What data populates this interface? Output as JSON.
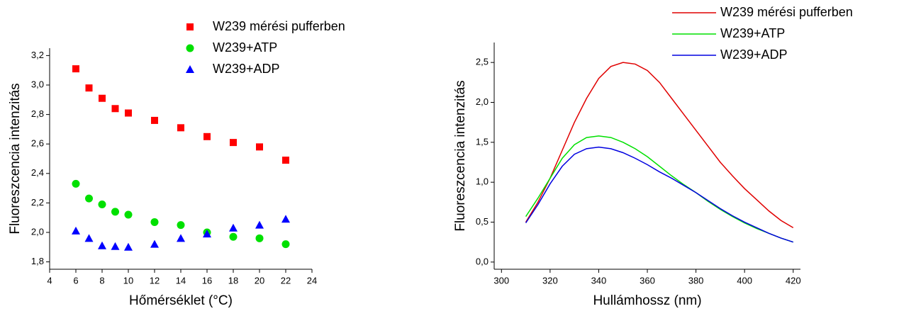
{
  "chart_data": [
    {
      "type": "scatter",
      "x_label": "Hőmérséklet (°C)",
      "y_label": "Fluoreszcencia intenzitás",
      "x": [
        6,
        7,
        8,
        9,
        10,
        12,
        14,
        16,
        18,
        20,
        22
      ],
      "series": [
        {
          "name": "W239 mérési pufferben",
          "color": "#ff0000",
          "marker": "square",
          "values": [
            3.11,
            2.98,
            2.91,
            2.84,
            2.81,
            2.76,
            2.71,
            2.65,
            2.61,
            2.58,
            2.49
          ]
        },
        {
          "name": "W239+ATP",
          "color": "#00e000",
          "marker": "circle",
          "values": [
            2.33,
            2.23,
            2.19,
            2.14,
            2.12,
            2.07,
            2.05,
            2.0,
            1.97,
            1.96,
            1.92
          ]
        },
        {
          "name": "W239+ADP",
          "color": "#0000ff",
          "marker": "triangle",
          "values": [
            2.01,
            1.96,
            1.91,
            1.905,
            1.9,
            1.92,
            1.96,
            1.99,
            2.03,
            2.05,
            2.09
          ]
        }
      ],
      "xlim": [
        4,
        24
      ],
      "xticks": [
        4,
        6,
        8,
        10,
        12,
        14,
        16,
        18,
        20,
        22,
        24
      ],
      "ylim": [
        1.75,
        3.25
      ],
      "yticks": [
        {
          "value": 1.8,
          "label": "1,8"
        },
        {
          "value": 2.0,
          "label": "2,0"
        },
        {
          "value": 2.2,
          "label": "2,2"
        },
        {
          "value": 2.4,
          "label": "2,4"
        },
        {
          "value": 2.6,
          "label": "2,6"
        },
        {
          "value": 2.8,
          "label": "2,8"
        },
        {
          "value": 3.0,
          "label": "3,0"
        },
        {
          "value": 3.2,
          "label": "3,2"
        }
      ]
    },
    {
      "type": "line",
      "x_label": "Hullámhossz (nm)",
      "y_label": "Fluoreszcencia intenzitás",
      "x": [
        310,
        315,
        320,
        325,
        330,
        335,
        340,
        345,
        350,
        355,
        360,
        365,
        370,
        375,
        380,
        385,
        390,
        395,
        400,
        405,
        410,
        415,
        420
      ],
      "series": [
        {
          "name": "W239 mérési pufferben",
          "color": "#e00000",
          "values": [
            0.5,
            0.75,
            1.05,
            1.4,
            1.75,
            2.05,
            2.3,
            2.45,
            2.5,
            2.48,
            2.4,
            2.25,
            2.05,
            1.85,
            1.65,
            1.45,
            1.25,
            1.08,
            0.92,
            0.78,
            0.64,
            0.52,
            0.43
          ]
        },
        {
          "name": "W239+ATP",
          "color": "#00e000",
          "values": [
            0.57,
            0.8,
            1.05,
            1.3,
            1.47,
            1.56,
            1.58,
            1.56,
            1.5,
            1.42,
            1.32,
            1.2,
            1.08,
            0.97,
            0.87,
            0.76,
            0.66,
            0.57,
            0.49,
            0.42,
            0.36,
            0.3,
            0.25
          ]
        },
        {
          "name": "W239+ADP",
          "color": "#0000e0",
          "values": [
            0.49,
            0.72,
            0.98,
            1.2,
            1.35,
            1.42,
            1.44,
            1.42,
            1.37,
            1.3,
            1.22,
            1.13,
            1.05,
            0.96,
            0.87,
            0.77,
            0.67,
            0.58,
            0.5,
            0.43,
            0.36,
            0.3,
            0.25
          ]
        }
      ],
      "xlim": [
        297,
        423
      ],
      "xticks": [
        300,
        320,
        340,
        360,
        380,
        400,
        420
      ],
      "ylim": [
        -0.09,
        2.75
      ],
      "yticks": [
        {
          "value": 0.0,
          "label": "0,0"
        },
        {
          "value": 0.5,
          "label": "0,5"
        },
        {
          "value": 1.0,
          "label": "1,0"
        },
        {
          "value": 1.5,
          "label": "1,5"
        },
        {
          "value": 2.0,
          "label": "2,0"
        },
        {
          "value": 2.5,
          "label": "2,5"
        }
      ]
    }
  ]
}
